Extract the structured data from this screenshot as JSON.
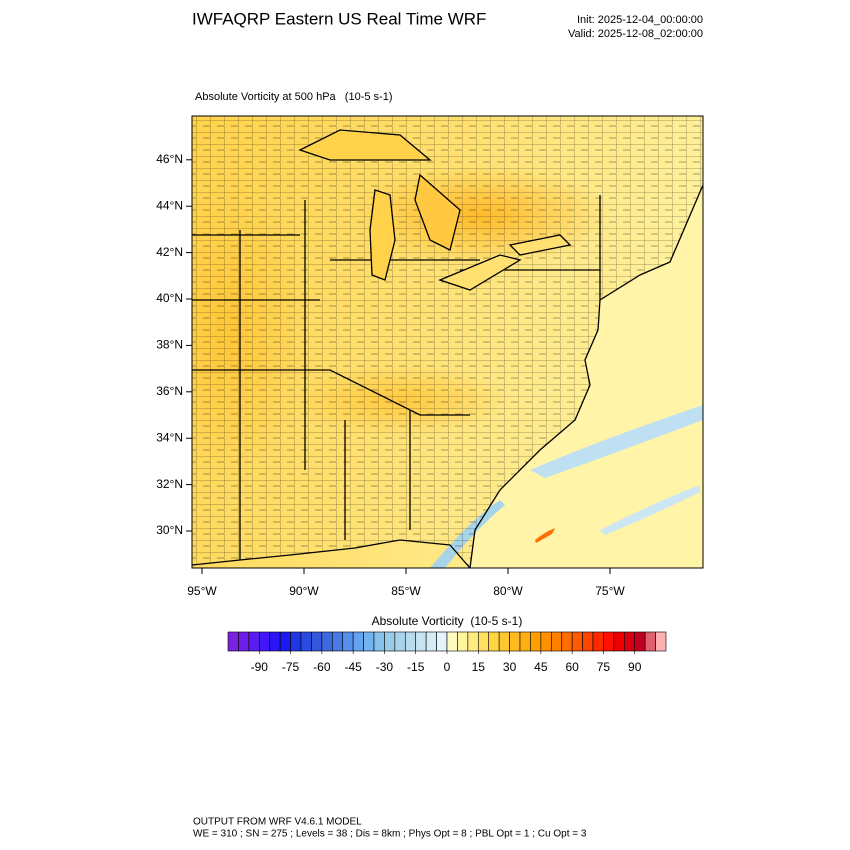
{
  "header": {
    "title": "IWFAQRP Eastern US Real Time WRF",
    "init": "Init: 2025-12-04_00:00:00",
    "valid": "Valid: 2025-12-08_02:00:00"
  },
  "map": {
    "field_title": "Absolute Vorticity at 500 hPa   (10-5 s-1)",
    "lat_labels": [
      "30°N",
      "32°N",
      "34°N",
      "36°N",
      "38°N",
      "40°N",
      "42°N",
      "44°N",
      "46°N"
    ],
    "lon_labels": [
      "95°W",
      "90°W",
      "85°W",
      "80°W",
      "75°W"
    ]
  },
  "colorbar": {
    "title": "Absolute Vorticity  (10-5 s-1)",
    "lim": [
      -105,
      105
    ],
    "ticks": [
      -90,
      -75,
      -60,
      -45,
      -30,
      -15,
      0,
      15,
      30,
      45,
      60,
      75,
      90
    ],
    "colors": [
      "#7a22e0",
      "#6b1fe8",
      "#5a1cf0",
      "#4317f5",
      "#2a14f5",
      "#1a1af0",
      "#1f35e8",
      "#2a4ae0",
      "#3558d8",
      "#3e68e0",
      "#4a7ae8",
      "#5590ec",
      "#64a4ee",
      "#74b4ee",
      "#86c2ec",
      "#98cce8",
      "#a8d4ea",
      "#b8dcee",
      "#c6e4f2",
      "#d4ecf6",
      "#e4f4fa",
      "#fffbc0",
      "#fff4a0",
      "#ffec80",
      "#ffe060",
      "#ffd440",
      "#ffc830",
      "#ffbc20",
      "#ffb010",
      "#ffa000",
      "#ff9000",
      "#ff8000",
      "#ff6e00",
      "#ff5a00",
      "#ff4400",
      "#ff2a00",
      "#ff1000",
      "#f00000",
      "#d80010",
      "#c00020",
      "#e06070",
      "#ffb0b0"
    ]
  },
  "footer": {
    "line1": "OUTPUT FROM WRF V4.6.1 MODEL",
    "line2": "WE = 310 ; SN = 275 ; Levels = 38 ; Dis = 8km ; Phys Opt = 8 ; PBL Opt = 1 ; Cu Opt = 3"
  }
}
